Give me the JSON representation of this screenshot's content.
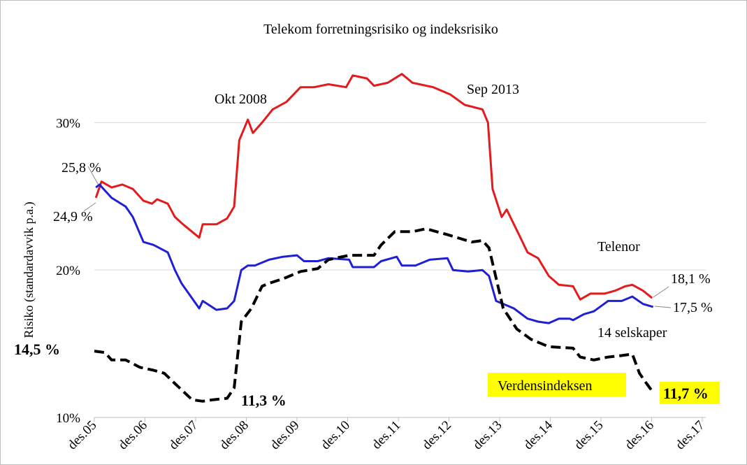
{
  "chart_data": {
    "type": "line",
    "title": "Telekom forretningsrisiko og indeksrisiko",
    "y_label": "Risiko (standardavvik p.a.)",
    "xlim": [
      0,
      12
    ],
    "xticks": [
      {
        "value": 0,
        "label": "des.05"
      },
      {
        "value": 1,
        "label": "des.06"
      },
      {
        "value": 2,
        "label": "des.07"
      },
      {
        "value": 3,
        "label": "des.08"
      },
      {
        "value": 4,
        "label": "des.09"
      },
      {
        "value": 5,
        "label": "des.10"
      },
      {
        "value": 6,
        "label": "des.11"
      },
      {
        "value": 7,
        "label": "des.12"
      },
      {
        "value": 8,
        "label": "des.13"
      },
      {
        "value": 9,
        "label": "des.14"
      },
      {
        "value": 10,
        "label": "des.15"
      },
      {
        "value": 11,
        "label": "des.16"
      },
      {
        "value": 12,
        "label": "des.17"
      }
    ],
    "ylim": [
      10,
      34
    ],
    "yticks": [
      {
        "value": 10,
        "label": "10%"
      },
      {
        "value": 20,
        "label": "20%"
      },
      {
        "value": 30,
        "label": "30%"
      }
    ],
    "grid": true,
    "series": [
      {
        "name": "Telenor",
        "color": "#e41a1c",
        "x": [
          0.03,
          0.14,
          0.34,
          0.55,
          0.76,
          0.97,
          1.14,
          1.24,
          1.45,
          1.59,
          1.75,
          2.07,
          2.14,
          2.41,
          2.62,
          2.76,
          2.86,
          3.03,
          3.13,
          3.31,
          3.52,
          3.79,
          4.07,
          4.34,
          4.62,
          4.97,
          5.1,
          5.38,
          5.52,
          5.79,
          6.07,
          6.28,
          6.69,
          7.03,
          7.31,
          7.66,
          7.77,
          7.86,
          8.04,
          8.14,
          8.34,
          8.55,
          8.76,
          8.97,
          9.17,
          9.45,
          9.59,
          9.79,
          10.07,
          10.28,
          10.48,
          10.62,
          10.83,
          11.01
        ],
        "values": [
          24.9,
          26.0,
          25.6,
          25.8,
          25.5,
          24.7,
          24.5,
          24.8,
          24.5,
          23.6,
          23.1,
          22.2,
          23.1,
          23.1,
          23.5,
          24.3,
          28.8,
          30.2,
          29.3,
          30.0,
          30.9,
          31.4,
          32.4,
          32.4,
          32.6,
          32.4,
          33.2,
          33.0,
          32.5,
          32.7,
          33.3,
          32.7,
          32.4,
          31.9,
          31.2,
          30.9,
          30.0,
          25.5,
          23.6,
          24.1,
          22.7,
          21.2,
          20.8,
          19.6,
          19.0,
          18.9,
          18.0,
          18.4,
          18.4,
          18.6,
          18.9,
          19.0,
          18.6,
          18.1
        ]
      },
      {
        "name": "14 selskaper",
        "color": "#1f1fd6",
        "x": [
          0.03,
          0.1,
          0.34,
          0.62,
          0.76,
          0.97,
          1.17,
          1.45,
          1.59,
          1.72,
          2.07,
          2.14,
          2.41,
          2.62,
          2.76,
          2.9,
          3.03,
          3.17,
          3.45,
          3.72,
          4.0,
          4.14,
          4.41,
          4.62,
          5.03,
          5.1,
          5.52,
          5.66,
          5.97,
          6.07,
          6.34,
          6.62,
          6.97,
          7.08,
          7.38,
          7.66,
          7.79,
          7.93,
          8.28,
          8.55,
          8.76,
          8.97,
          9.17,
          9.38,
          9.45,
          9.66,
          9.86,
          10.14,
          10.41,
          10.62,
          10.83,
          11.03
        ],
        "values": [
          25.6,
          25.8,
          24.9,
          24.3,
          23.6,
          21.9,
          21.7,
          21.2,
          20.0,
          19.1,
          17.4,
          17.9,
          17.3,
          17.4,
          17.9,
          20.0,
          20.3,
          20.3,
          20.7,
          20.9,
          21.0,
          20.6,
          20.6,
          20.8,
          20.7,
          20.2,
          20.2,
          20.6,
          20.9,
          20.3,
          20.3,
          20.7,
          20.8,
          20.0,
          19.9,
          20.0,
          19.6,
          17.9,
          17.4,
          16.7,
          16.5,
          16.4,
          16.7,
          16.7,
          16.6,
          17.0,
          17.2,
          17.9,
          17.9,
          18.2,
          17.7,
          17.5
        ]
      },
      {
        "name": "Verdensindeksen",
        "color": "#000000",
        "x": [
          0,
          0.21,
          0.34,
          0.62,
          0.9,
          1.17,
          1.38,
          1.59,
          1.93,
          2.14,
          2.34,
          2.62,
          2.76,
          2.9,
          3.1,
          3.31,
          3.45,
          3.72,
          4.07,
          4.41,
          4.62,
          5.03,
          5.52,
          5.66,
          5.93,
          6.28,
          6.55,
          6.97,
          7.45,
          7.66,
          7.79,
          8.07,
          8.34,
          8.62,
          8.97,
          9.45,
          9.59,
          9.86,
          10.14,
          10.41,
          10.62,
          10.76,
          10.9,
          11.03
        ],
        "values": [
          14.5,
          14.4,
          13.9,
          13.9,
          13.4,
          13.2,
          13.0,
          12.3,
          11.2,
          11.1,
          11.2,
          11.3,
          12.0,
          16.5,
          17.4,
          18.9,
          19.1,
          19.4,
          19.9,
          20.1,
          20.7,
          21.0,
          21.0,
          21.7,
          22.6,
          22.6,
          22.8,
          22.4,
          21.9,
          22.0,
          21.5,
          17.4,
          16.0,
          15.3,
          14.8,
          14.7,
          14.1,
          13.9,
          14.1,
          14.2,
          14.3,
          13.0,
          12.3,
          11.7
        ]
      }
    ],
    "annotations": [
      "Okt 2008",
      "Sep 2013",
      "25,8 %",
      "24,9 %",
      "14,5 %",
      "11,3 %",
      "18,1 %",
      "17,5 %",
      "11,7 %"
    ]
  }
}
